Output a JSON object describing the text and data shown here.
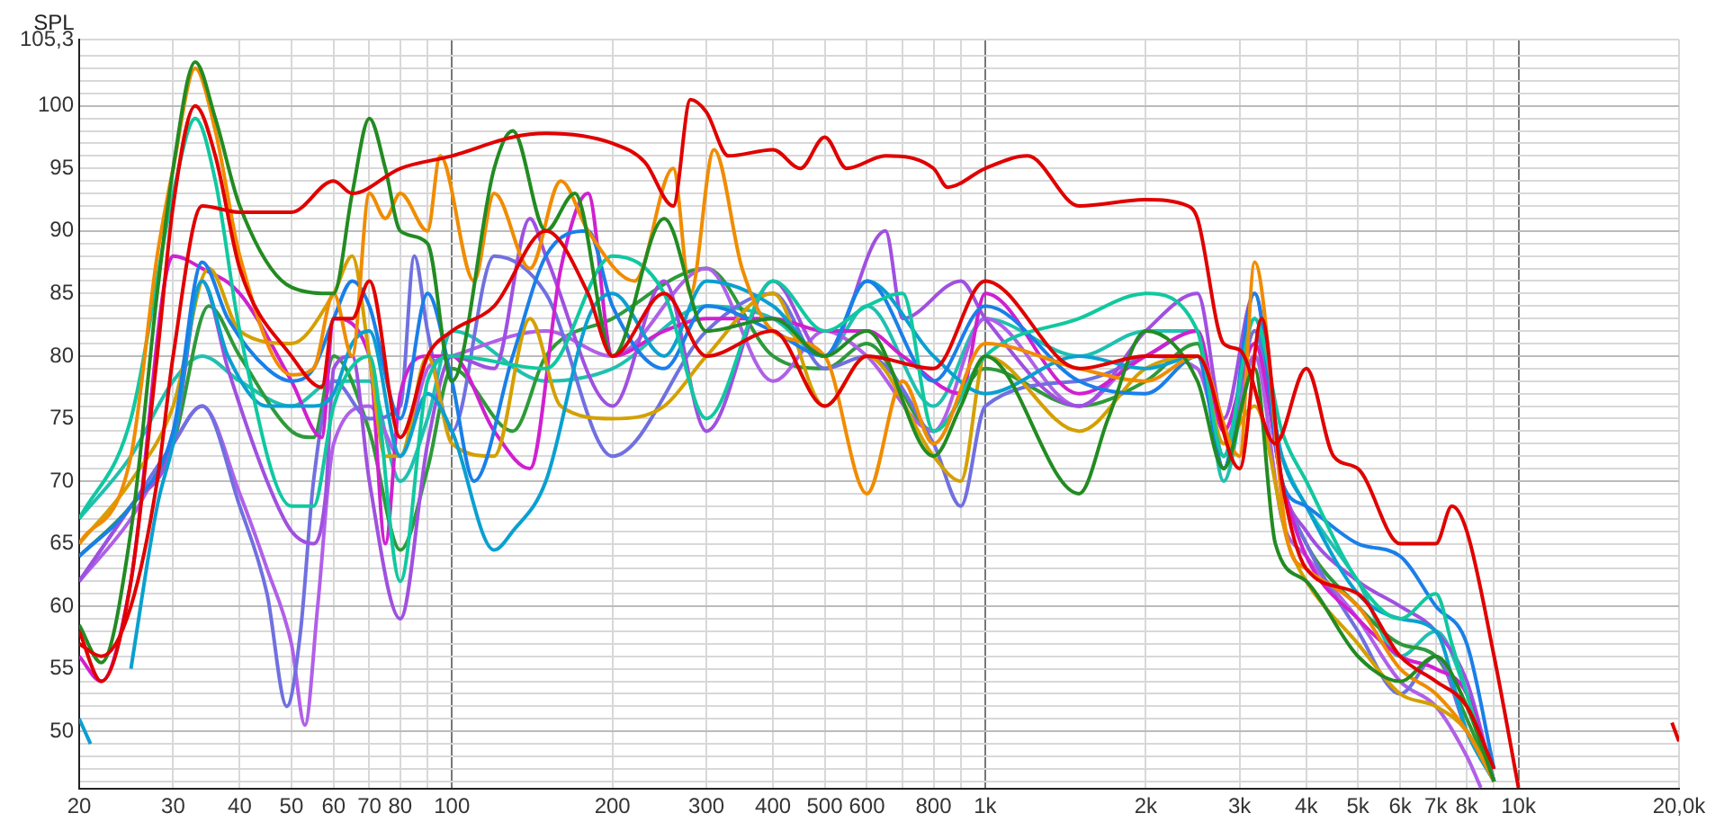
{
  "chart_data": {
    "type": "line",
    "ylabel": "SPL",
    "log": "x",
    "grid": true,
    "legend": false,
    "marker": "none",
    "line_style": "solid",
    "xlim": [
      20,
      20000
    ],
    "ylim": [
      45.4,
      105.3
    ],
    "xticks": [
      20,
      30,
      40,
      50,
      60,
      70,
      80,
      {
        "value": 90,
        "label": null
      },
      100,
      200,
      300,
      400,
      500,
      600,
      {
        "value": 700,
        "label": null
      },
      800,
      {
        "value": 900,
        "label": null
      },
      {
        "value": 1000,
        "label": "1k"
      },
      {
        "value": 2000,
        "label": "2k"
      },
      {
        "value": 3000,
        "label": "3k"
      },
      {
        "value": 4000,
        "label": "4k"
      },
      {
        "value": 5000,
        "label": "5k"
      },
      {
        "value": 6000,
        "label": "6k"
      },
      {
        "value": 7000,
        "label": "7k"
      },
      {
        "value": 8000,
        "label": "8k"
      },
      {
        "value": 9000,
        "label": null
      },
      {
        "value": 10000,
        "label": "10k"
      },
      {
        "value": 20000,
        "label": "20,0k"
      }
    ],
    "yticks": [
      {
        "value": 46,
        "label": null
      },
      {
        "value": 47,
        "label": null
      },
      {
        "value": 48,
        "label": null
      },
      {
        "value": 49,
        "label": null
      },
      50,
      {
        "value": 51,
        "label": null
      },
      {
        "value": 52,
        "label": null
      },
      {
        "value": 53,
        "label": null
      },
      {
        "value": 54,
        "label": null
      },
      55,
      {
        "value": 56,
        "label": null
      },
      {
        "value": 57,
        "label": null
      },
      {
        "value": 58,
        "label": null
      },
      {
        "value": 59,
        "label": null
      },
      60,
      {
        "value": 61,
        "label": null
      },
      {
        "value": 62,
        "label": null
      },
      {
        "value": 63,
        "label": null
      },
      {
        "value": 64,
        "label": null
      },
      65,
      {
        "value": 66,
        "label": null
      },
      {
        "value": 67,
        "label": null
      },
      {
        "value": 68,
        "label": null
      },
      {
        "value": 69,
        "label": null
      },
      70,
      {
        "value": 71,
        "label": null
      },
      {
        "value": 72,
        "label": null
      },
      {
        "value": 73,
        "label": null
      },
      {
        "value": 74,
        "label": null
      },
      75,
      {
        "value": 76,
        "label": null
      },
      {
        "value": 77,
        "label": null
      },
      {
        "value": 78,
        "label": null
      },
      {
        "value": 79,
        "label": null
      },
      80,
      {
        "value": 81,
        "label": null
      },
      {
        "value": 82,
        "label": null
      },
      {
        "value": 83,
        "label": null
      },
      {
        "value": 84,
        "label": null
      },
      85,
      {
        "value": 86,
        "label": null
      },
      {
        "value": 87,
        "label": null
      },
      {
        "value": 88,
        "label": null
      },
      {
        "value": 89,
        "label": null
      },
      90,
      {
        "value": 91,
        "label": null
      },
      {
        "value": 92,
        "label": null
      },
      {
        "value": 93,
        "label": null
      },
      {
        "value": 94,
        "label": null
      },
      95,
      {
        "value": 96,
        "label": null
      },
      {
        "value": 97,
        "label": null
      },
      {
        "value": 98,
        "label": null
      },
      {
        "value": 99,
        "label": null
      },
      100,
      {
        "value": 101,
        "label": null
      },
      {
        "value": 102,
        "label": null
      },
      {
        "value": 103,
        "label": null
      },
      {
        "value": 104,
        "label": null
      },
      {
        "value": 105.3,
        "label": "105,3"
      }
    ],
    "series": [
      {
        "color": "#e00000",
        "x": [
          20,
          22,
          25,
          28,
          30,
          34,
          40,
          50,
          60,
          65,
          80,
          100,
          130,
          150,
          200,
          230,
          260,
          280,
          300,
          330,
          400,
          450,
          500,
          550,
          650,
          800,
          850,
          1000,
          1200,
          1500,
          2000,
          2400,
          2500,
          2800,
          3000,
          3500,
          4000,
          4500,
          5000,
          6000,
          7000,
          7500,
          8000,
          9000,
          10000,
          14000,
          18600,
          19400,
          20000
        ],
        "values": [
          57,
          56,
          60,
          70,
          80,
          92,
          91.5,
          91.5,
          94,
          93,
          95,
          96,
          97.5,
          97.8,
          97,
          95.5,
          92,
          100.5,
          99.5,
          96,
          96.5,
          95,
          97.5,
          95,
          96,
          95,
          93.5,
          95,
          96,
          92,
          92.5,
          92,
          91,
          81,
          80.5,
          73,
          79,
          72,
          71,
          65,
          65,
          68,
          66,
          56,
          45.5,
          null,
          null,
          50.7,
          49.2
        ]
      },
      {
        "color": "#e00000",
        "x": [
          20,
          22,
          25,
          28,
          30,
          33,
          36,
          40,
          50,
          57,
          60,
          65,
          70,
          80,
          90,
          100,
          120,
          150,
          180,
          200,
          250,
          300,
          400,
          500,
          600,
          800,
          1000,
          1500,
          2000,
          2500,
          3000,
          3300,
          3600,
          4000,
          5000,
          6000,
          7000,
          8000,
          9000
        ],
        "values": [
          58,
          54,
          62,
          80,
          92,
          100,
          96,
          87,
          80,
          77.5,
          83,
          83,
          86,
          73.5,
          80,
          82,
          84,
          90,
          85,
          80,
          85,
          80,
          82,
          76,
          80,
          79,
          86,
          79,
          80,
          80,
          71,
          83,
          70,
          63,
          61,
          56,
          54,
          52,
          47
        ]
      },
      {
        "color": "#228b22",
        "x": [
          20,
          22,
          25,
          28,
          30,
          33,
          36,
          40,
          50,
          60,
          65,
          70,
          75,
          80,
          90,
          100,
          120,
          130,
          150,
          170,
          200,
          250,
          300,
          400,
          500,
          600,
          800,
          900,
          1000,
          1500,
          1700,
          2000,
          2500,
          2800,
          3200,
          3500,
          4000,
          5000,
          6000,
          7000,
          8000,
          9000
        ],
        "values": [
          58.5,
          55.5,
          66,
          85,
          95,
          103.5,
          99,
          92,
          85.5,
          85,
          93,
          99,
          95,
          90,
          89,
          78,
          95,
          98,
          90,
          93,
          80,
          91,
          82,
          83,
          80,
          82,
          72,
          76,
          80,
          69,
          75,
          82,
          78,
          71,
          79,
          65,
          62,
          56,
          54,
          56,
          52,
          46
        ]
      },
      {
        "color": "#f08c00",
        "x": [
          20,
          25,
          28,
          30,
          33,
          36,
          40,
          50,
          55,
          60,
          65,
          70,
          75,
          80,
          90,
          95,
          110,
          120,
          140,
          160,
          180,
          220,
          260,
          280,
          310,
          350,
          400,
          500,
          600,
          700,
          800,
          1000,
          1500,
          2000,
          2500,
          3000,
          3200,
          3700,
          4000,
          5000,
          6000,
          7000,
          8000,
          9000
        ],
        "values": [
          65,
          72,
          88,
          95,
          103,
          98,
          88,
          78.5,
          79,
          85,
          80,
          93,
          91,
          93,
          90,
          96,
          86,
          93,
          87,
          94,
          90,
          86,
          95,
          85,
          96.5,
          87,
          82,
          80,
          69,
          78,
          73,
          81,
          79,
          78,
          80,
          72,
          87.5,
          65,
          63,
          60,
          55,
          53,
          50,
          46
        ]
      },
      {
        "color": "#10c8a0",
        "x": [
          20,
          25,
          30,
          33,
          36,
          40,
          50,
          55,
          60,
          70,
          80,
          90,
          100,
          150,
          200,
          250,
          300,
          400,
          500,
          600,
          700,
          800,
          1000,
          1500,
          2000,
          2500,
          2800,
          3200,
          3600,
          4000,
          5000,
          6000,
          7000,
          7500,
          8000,
          9000
        ],
        "values": [
          67,
          75,
          93,
          99,
          94,
          82,
          68,
          68,
          76,
          80,
          62,
          78,
          80,
          79,
          88,
          85,
          75,
          86,
          82,
          84,
          85,
          74,
          80,
          83,
          85,
          82,
          72,
          83,
          74,
          70,
          62,
          59,
          61,
          57,
          53,
          46
        ]
      },
      {
        "color": "#1a7fe8",
        "x": [
          20,
          25,
          30,
          34,
          38,
          45,
          50,
          55,
          60,
          65,
          70,
          80,
          90,
          100,
          110,
          130,
          150,
          180,
          200,
          250,
          300,
          400,
          500,
          600,
          800,
          1000,
          1500,
          2000,
          2500,
          2800,
          3200,
          3600,
          4000,
          5000,
          6000,
          7000,
          8000,
          9000
        ],
        "values": [
          64,
          68,
          74,
          87.5,
          83,
          79,
          78,
          79,
          83,
          86,
          84,
          75,
          85,
          78,
          70,
          80,
          88,
          90,
          84,
          79,
          84,
          82,
          80,
          86,
          78,
          84,
          78,
          77,
          80,
          71,
          85,
          70,
          68,
          65,
          64,
          60,
          57,
          47
        ]
      },
      {
        "color": "#0aa0d0",
        "x": [
          20,
          21,
          21.8,
          22.6,
          23.5,
          25,
          28,
          30,
          34,
          38,
          45,
          55,
          60,
          65,
          70,
          80,
          90,
          100,
          120,
          130,
          150,
          180,
          200,
          250,
          300,
          400,
          500,
          600,
          800,
          1000,
          1500,
          2000,
          2500,
          2800,
          3200,
          3600,
          4000,
          5000,
          6000,
          7000,
          8000,
          9000
        ],
        "values": [
          51,
          49,
          null,
          null,
          null,
          55,
          68,
          73,
          86,
          80,
          76,
          76,
          77,
          81,
          82,
          72,
          77,
          74,
          64.5,
          66,
          70,
          83,
          85,
          80,
          86,
          84,
          80,
          86,
          80,
          77,
          80,
          79,
          80,
          72,
          83,
          72,
          68,
          61,
          59,
          58,
          50,
          46
        ]
      },
      {
        "color": "#d4a000",
        "x": [
          20,
          25,
          30,
          35,
          40,
          50,
          60,
          65,
          70,
          75,
          80,
          90,
          100,
          120,
          140,
          160,
          200,
          250,
          300,
          400,
          500,
          600,
          800,
          900,
          1000,
          1500,
          2000,
          2500,
          2800,
          3200,
          3700,
          4000,
          5000,
          6000,
          7000,
          8000,
          9000
        ],
        "values": [
          65,
          70,
          76,
          87,
          82,
          81,
          85,
          88,
          80,
          72,
          72,
          80,
          73,
          72,
          83,
          76,
          75,
          76,
          80,
          85,
          76,
          80,
          72,
          70,
          80,
          74,
          79,
          80,
          73,
          76,
          65,
          62,
          57,
          53,
          52,
          50,
          46
        ]
      },
      {
        "color": "#d020d0",
        "x": [
          20,
          22,
          25,
          30,
          34,
          40,
          50,
          57,
          60,
          70,
          75,
          80,
          90,
          100,
          120,
          140,
          160,
          180,
          200,
          250,
          300,
          400,
          500,
          600,
          700,
          900,
          1000,
          1500,
          2000,
          2500,
          2800,
          3200,
          3600,
          4000,
          5000,
          6000,
          7000,
          8000,
          9000
        ],
        "values": [
          56,
          54,
          62,
          88,
          87,
          85,
          78,
          73.5,
          83,
          80,
          65,
          77,
          80,
          80,
          74,
          71,
          87,
          93,
          80,
          82,
          83,
          83,
          82,
          82,
          80,
          77,
          85,
          77,
          80,
          82,
          74,
          81,
          70,
          64,
          59,
          56,
          55,
          53,
          46
        ]
      },
      {
        "color": "#a050e0",
        "x": [
          20,
          25,
          30,
          34,
          38,
          45,
          50,
          55,
          58,
          60,
          65,
          70,
          80,
          90,
          100,
          120,
          140,
          150,
          200,
          250,
          300,
          400,
          500,
          650,
          700,
          900,
          1000,
          1500,
          2000,
          2500,
          2800,
          3200,
          3600,
          4000,
          5000,
          6000,
          7000,
          8000,
          9000
        ],
        "values": [
          62,
          68,
          73,
          86,
          79,
          70,
          66,
          65,
          69,
          79,
          80,
          70,
          59,
          73,
          80,
          79,
          91,
          88,
          76,
          86,
          74,
          86,
          80,
          90,
          83,
          86,
          83,
          76,
          82,
          85,
          75,
          85,
          70,
          66,
          62,
          60,
          58,
          54,
          46
        ]
      },
      {
        "color": "#7070e0",
        "x": [
          20,
          25,
          30,
          34,
          40,
          45,
          49,
          52,
          55,
          60,
          70,
          80,
          85,
          90,
          100,
          120,
          150,
          200,
          300,
          400,
          500,
          600,
          800,
          900,
          1000,
          1500,
          2000,
          2500,
          2800,
          3200,
          3600,
          4000,
          5000,
          6000,
          7000,
          8000,
          9000
        ],
        "values": [
          62,
          68,
          73,
          76,
          68,
          61,
          52,
          58,
          70,
          78,
          75,
          76,
          88,
          82,
          74,
          88,
          85,
          72,
          82,
          85,
          79,
          80,
          73,
          68,
          76,
          78,
          80,
          82,
          72,
          82,
          70,
          65,
          58,
          53,
          56,
          50,
          46
        ]
      },
      {
        "color": "#b060e8",
        "x": [
          20,
          25,
          30,
          34,
          40,
          45,
          50,
          53,
          56,
          60,
          70,
          80,
          90,
          100,
          150,
          200,
          300,
          400,
          500,
          600,
          800,
          1000,
          1500,
          2000,
          2500,
          2800,
          3200,
          3600,
          4000,
          5000,
          6000,
          7000,
          8000,
          8500
        ],
        "values": [
          62,
          67,
          73,
          76,
          69,
          63,
          57,
          50.5,
          60,
          73,
          76,
          72,
          79,
          80,
          82,
          80,
          87,
          78,
          82,
          80,
          74,
          83,
          76,
          80,
          79,
          73,
          80,
          67,
          64,
          59,
          54,
          52,
          48,
          45.5
        ]
      },
      {
        "color": "#2e9a3a",
        "x": [
          20,
          25,
          30,
          35,
          40,
          50,
          55,
          60,
          70,
          80,
          90,
          100,
          130,
          150,
          200,
          300,
          400,
          500,
          600,
          800,
          1000,
          1500,
          2000,
          2500,
          2800,
          3200,
          3600,
          4000,
          5000,
          6000,
          7000,
          8000,
          9000
        ],
        "values": [
          64,
          68,
          73,
          84,
          80,
          74,
          73.5,
          80,
          74,
          64.5,
          71,
          79,
          74,
          80,
          83,
          87,
          80,
          79,
          81,
          74,
          79,
          76,
          78,
          81,
          71,
          82,
          70,
          65,
          60,
          57,
          56,
          51,
          46
        ]
      },
      {
        "color": "#20c0b0",
        "x": [
          20,
          25,
          30,
          34,
          40,
          50,
          60,
          70,
          80,
          90,
          100,
          150,
          200,
          300,
          400,
          500,
          600,
          800,
          1000,
          1500,
          2000,
          2500,
          2800,
          3200,
          3600,
          4000,
          5000,
          6000,
          7000,
          8000,
          9000
        ],
        "values": [
          67,
          72,
          78,
          80,
          78,
          76,
          78,
          78,
          70,
          75,
          82,
          78,
          79,
          84,
          83,
          80,
          84,
          76,
          83,
          80,
          82,
          82,
          70,
          80,
          72,
          68,
          62,
          56,
          58,
          53,
          46
        ]
      }
    ]
  }
}
